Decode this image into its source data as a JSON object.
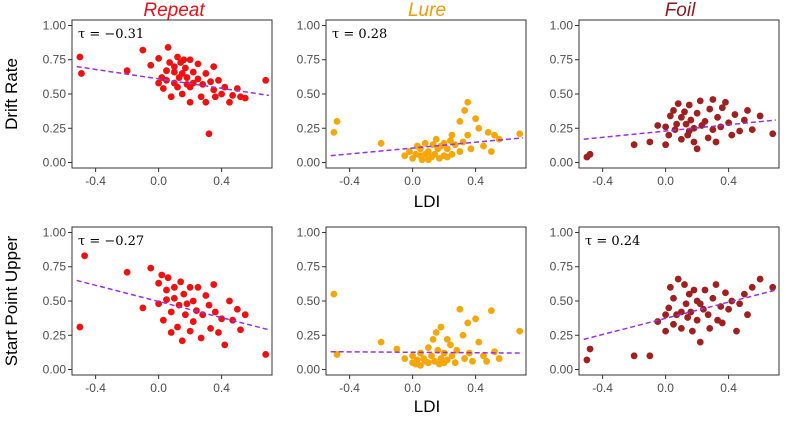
{
  "chart_data": {
    "type": "scatter",
    "col_titles": [
      {
        "label": "Repeat",
        "color": "#e8101a"
      },
      {
        "label": "Lure",
        "color": "#ef9a0a"
      },
      {
        "label": "Foil",
        "color": "#8b1a1f"
      }
    ],
    "row_labels": [
      "Drift Rate",
      "Start Point Upper"
    ],
    "xlabel": "LDI",
    "xticks": [
      "-0.4",
      "0.0",
      "0.4"
    ],
    "xtick_values": [
      -0.4,
      0.0,
      0.4
    ],
    "yticks": [
      "0.00",
      "0.25",
      "0.50",
      "0.75",
      "1.00"
    ],
    "ytick_values": [
      0.0,
      0.25,
      0.5,
      0.75,
      1.0
    ],
    "xlim": [
      -0.55,
      0.72
    ],
    "ylim": [
      -0.04,
      1.04
    ],
    "trend_color": "#9b30e0",
    "panels": [
      {
        "row": 0,
        "col": 0,
        "tau": "τ = −0.31",
        "color": "#f01010",
        "trend": [
          [
            -0.52,
            0.7
          ],
          [
            0.7,
            0.49
          ]
        ],
        "x": [
          -0.5,
          -0.49,
          -0.2,
          -0.1,
          -0.05,
          0.0,
          0.0,
          0.02,
          0.03,
          0.05,
          0.05,
          0.06,
          0.07,
          0.08,
          0.1,
          0.1,
          0.1,
          0.12,
          0.12,
          0.13,
          0.14,
          0.15,
          0.15,
          0.16,
          0.17,
          0.18,
          0.18,
          0.2,
          0.2,
          0.2,
          0.22,
          0.22,
          0.25,
          0.25,
          0.27,
          0.28,
          0.3,
          0.3,
          0.32,
          0.33,
          0.35,
          0.35,
          0.36,
          0.38,
          0.4,
          0.42,
          0.45,
          0.47,
          0.5,
          0.52,
          0.55,
          0.68
        ],
        "y": [
          0.77,
          0.65,
          0.67,
          0.82,
          0.71,
          0.58,
          0.76,
          0.62,
          0.54,
          0.67,
          0.6,
          0.84,
          0.73,
          0.48,
          0.66,
          0.7,
          0.58,
          0.77,
          0.55,
          0.62,
          0.73,
          0.65,
          0.5,
          0.75,
          0.69,
          0.62,
          0.57,
          0.75,
          0.55,
          0.44,
          0.66,
          0.58,
          0.72,
          0.61,
          0.48,
          0.57,
          0.65,
          0.44,
          0.21,
          0.59,
          0.53,
          0.7,
          0.48,
          0.6,
          0.5,
          0.55,
          0.44,
          0.49,
          0.54,
          0.48,
          0.47,
          0.6
        ]
      },
      {
        "row": 0,
        "col": 1,
        "tau": "τ = 0.28",
        "color": "#f5a70a",
        "trend": [
          [
            -0.52,
            0.05
          ],
          [
            0.7,
            0.18
          ]
        ],
        "x": [
          -0.5,
          -0.48,
          -0.2,
          -0.05,
          -0.02,
          0.0,
          0.02,
          0.03,
          0.05,
          0.05,
          0.06,
          0.08,
          0.08,
          0.1,
          0.1,
          0.12,
          0.13,
          0.14,
          0.15,
          0.16,
          0.17,
          0.18,
          0.2,
          0.2,
          0.22,
          0.22,
          0.24,
          0.25,
          0.25,
          0.27,
          0.3,
          0.3,
          0.32,
          0.33,
          0.35,
          0.35,
          0.37,
          0.4,
          0.42,
          0.45,
          0.48,
          0.5,
          0.52,
          0.55,
          0.68
        ],
        "y": [
          0.22,
          0.3,
          0.14,
          0.05,
          0.08,
          0.03,
          0.06,
          0.12,
          0.05,
          0.1,
          0.02,
          0.06,
          0.14,
          0.02,
          0.08,
          0.04,
          0.13,
          0.06,
          0.17,
          0.1,
          0.03,
          0.12,
          0.05,
          0.14,
          0.04,
          0.1,
          0.16,
          0.06,
          0.2,
          0.13,
          0.08,
          0.3,
          0.15,
          0.38,
          0.44,
          0.2,
          0.1,
          0.32,
          0.25,
          0.12,
          0.22,
          0.08,
          0.2,
          0.17,
          0.21
        ]
      },
      {
        "row": 0,
        "col": 2,
        "tau": "",
        "color": "#a02020",
        "trend": [
          [
            -0.52,
            0.17
          ],
          [
            0.7,
            0.31
          ]
        ],
        "x": [
          -0.5,
          -0.48,
          -0.2,
          -0.1,
          -0.05,
          0.0,
          0.0,
          0.02,
          0.03,
          0.05,
          0.06,
          0.07,
          0.08,
          0.1,
          0.1,
          0.12,
          0.13,
          0.14,
          0.15,
          0.15,
          0.16,
          0.18,
          0.18,
          0.2,
          0.2,
          0.22,
          0.23,
          0.25,
          0.27,
          0.28,
          0.3,
          0.3,
          0.32,
          0.33,
          0.35,
          0.36,
          0.38,
          0.4,
          0.42,
          0.44,
          0.47,
          0.5,
          0.52,
          0.55,
          0.6,
          0.68
        ],
        "y": [
          0.04,
          0.06,
          0.13,
          0.15,
          0.27,
          0.26,
          0.13,
          0.2,
          0.34,
          0.38,
          0.24,
          0.28,
          0.43,
          0.17,
          0.33,
          0.37,
          0.28,
          0.2,
          0.42,
          0.23,
          0.31,
          0.15,
          0.25,
          0.1,
          0.36,
          0.45,
          0.27,
          0.3,
          0.18,
          0.39,
          0.46,
          0.24,
          0.15,
          0.33,
          0.26,
          0.4,
          0.44,
          0.29,
          0.2,
          0.35,
          0.23,
          0.31,
          0.38,
          0.24,
          0.34,
          0.21
        ]
      },
      {
        "row": 1,
        "col": 0,
        "tau": "τ = −0.27",
        "color": "#f01010",
        "trend": [
          [
            -0.52,
            0.65
          ],
          [
            0.7,
            0.29
          ]
        ],
        "x": [
          -0.5,
          -0.47,
          -0.2,
          -0.1,
          -0.05,
          0.0,
          0.0,
          0.02,
          0.03,
          0.05,
          0.05,
          0.06,
          0.08,
          0.08,
          0.1,
          0.1,
          0.12,
          0.13,
          0.14,
          0.15,
          0.16,
          0.17,
          0.18,
          0.2,
          0.2,
          0.22,
          0.22,
          0.24,
          0.25,
          0.27,
          0.28,
          0.3,
          0.32,
          0.33,
          0.35,
          0.36,
          0.38,
          0.4,
          0.42,
          0.45,
          0.47,
          0.5,
          0.52,
          0.55,
          0.68
        ],
        "y": [
          0.31,
          0.83,
          0.71,
          0.45,
          0.74,
          0.63,
          0.48,
          0.69,
          0.36,
          0.58,
          0.51,
          0.67,
          0.27,
          0.42,
          0.6,
          0.52,
          0.31,
          0.47,
          0.64,
          0.21,
          0.55,
          0.4,
          0.48,
          0.28,
          0.6,
          0.35,
          0.5,
          0.43,
          0.6,
          0.23,
          0.4,
          0.54,
          0.47,
          0.3,
          0.62,
          0.42,
          0.27,
          0.37,
          0.18,
          0.5,
          0.36,
          0.44,
          0.29,
          0.4,
          0.11
        ]
      },
      {
        "row": 1,
        "col": 1,
        "tau": "",
        "color": "#f5a70a",
        "trend": [
          [
            -0.52,
            0.13
          ],
          [
            0.7,
            0.12
          ]
        ],
        "x": [
          -0.5,
          -0.48,
          -0.2,
          -0.1,
          -0.05,
          0.0,
          0.0,
          0.02,
          0.03,
          0.05,
          0.05,
          0.07,
          0.08,
          0.1,
          0.1,
          0.12,
          0.13,
          0.14,
          0.15,
          0.16,
          0.17,
          0.18,
          0.18,
          0.2,
          0.2,
          0.22,
          0.22,
          0.24,
          0.25,
          0.27,
          0.28,
          0.3,
          0.32,
          0.33,
          0.35,
          0.36,
          0.38,
          0.4,
          0.42,
          0.45,
          0.47,
          0.5,
          0.52,
          0.55,
          0.68
        ],
        "y": [
          0.55,
          0.11,
          0.2,
          0.15,
          0.08,
          0.05,
          0.1,
          0.04,
          0.07,
          0.12,
          0.03,
          0.08,
          0.06,
          0.16,
          0.05,
          0.1,
          0.22,
          0.06,
          0.27,
          0.14,
          0.04,
          0.08,
          0.31,
          0.12,
          0.05,
          0.22,
          0.07,
          0.18,
          0.1,
          0.05,
          0.14,
          0.44,
          0.25,
          0.08,
          0.34,
          0.12,
          0.06,
          0.37,
          0.2,
          0.1,
          0.06,
          0.43,
          0.13,
          0.08,
          0.28
        ]
      },
      {
        "row": 1,
        "col": 2,
        "tau": "τ = 0.24",
        "color": "#a02020",
        "trend": [
          [
            -0.52,
            0.22
          ],
          [
            0.7,
            0.58
          ]
        ],
        "x": [
          -0.5,
          -0.48,
          -0.2,
          -0.1,
          -0.05,
          0.0,
          0.0,
          0.02,
          0.03,
          0.05,
          0.05,
          0.07,
          0.08,
          0.1,
          0.1,
          0.12,
          0.13,
          0.14,
          0.15,
          0.16,
          0.17,
          0.18,
          0.2,
          0.2,
          0.22,
          0.22,
          0.24,
          0.25,
          0.27,
          0.28,
          0.3,
          0.32,
          0.33,
          0.35,
          0.36,
          0.38,
          0.4,
          0.42,
          0.45,
          0.47,
          0.5,
          0.52,
          0.55,
          0.6,
          0.68
        ],
        "y": [
          0.07,
          0.15,
          0.1,
          0.1,
          0.35,
          0.28,
          0.4,
          0.45,
          0.6,
          0.33,
          0.52,
          0.4,
          0.66,
          0.42,
          0.3,
          0.62,
          0.48,
          0.38,
          0.55,
          0.42,
          0.28,
          0.58,
          0.36,
          0.5,
          0.2,
          0.48,
          0.44,
          0.58,
          0.4,
          0.3,
          0.52,
          0.62,
          0.36,
          0.46,
          0.34,
          0.56,
          0.44,
          0.5,
          0.28,
          0.48,
          0.55,
          0.4,
          0.6,
          0.66,
          0.6
        ]
      }
    ]
  }
}
